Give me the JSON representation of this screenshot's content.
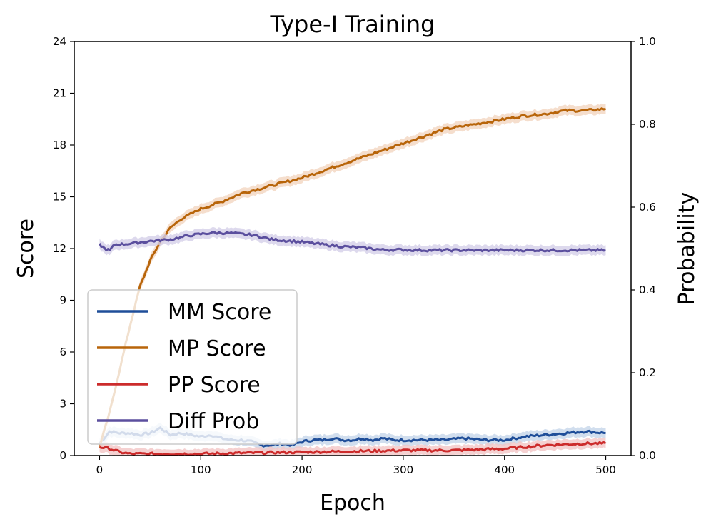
{
  "chart_data": {
    "type": "line",
    "title": "Type-I Training",
    "xlabel": "Epoch",
    "ylabel": "Score",
    "y2label": "Probability",
    "xlim": [
      -25,
      525
    ],
    "ylim": [
      0,
      24
    ],
    "y2lim": [
      0,
      1
    ],
    "xticks": [
      "0",
      "100",
      "200",
      "300",
      "400",
      "500"
    ],
    "yticks": [
      "0",
      "3",
      "6",
      "9",
      "12",
      "15",
      "18",
      "21",
      "24"
    ],
    "y2ticks": [
      "0.0",
      "0.2",
      "0.4",
      "0.6",
      "0.8",
      "1.0"
    ],
    "legend_position": "lower-left",
    "series": [
      {
        "name": "MM Score",
        "axis": "left",
        "color": "#1f4e99",
        "band_color": "#c6d6ea",
        "x": [
          0,
          10,
          20,
          30,
          40,
          50,
          60,
          70,
          80,
          90,
          100,
          110,
          120,
          130,
          140,
          150,
          160,
          170,
          180,
          190,
          200,
          210,
          220,
          230,
          240,
          250,
          260,
          270,
          280,
          290,
          300,
          320,
          340,
          360,
          380,
          400,
          420,
          440,
          460,
          480,
          500
        ],
        "y": [
          0.7,
          1.4,
          1.3,
          1.3,
          1.2,
          1.3,
          1.6,
          1.2,
          1.3,
          1.2,
          1.1,
          1.2,
          1.0,
          0.9,
          0.9,
          0.8,
          0.6,
          0.6,
          0.7,
          0.6,
          0.8,
          0.9,
          0.9,
          1.0,
          0.9,
          0.9,
          1.0,
          0.9,
          1.0,
          0.9,
          0.9,
          0.9,
          0.9,
          1.0,
          0.9,
          0.9,
          1.1,
          1.2,
          1.3,
          1.4,
          1.3
        ]
      },
      {
        "name": "MP Score",
        "axis": "left",
        "color": "#b8650a",
        "band_color": "#f2d6c0",
        "x": [
          0,
          10,
          20,
          30,
          40,
          50,
          60,
          70,
          80,
          90,
          100,
          120,
          140,
          160,
          180,
          200,
          220,
          240,
          260,
          280,
          300,
          320,
          340,
          360,
          380,
          400,
          420,
          440,
          460,
          480,
          500
        ],
        "y": [
          0.5,
          2.5,
          5.0,
          7.5,
          9.8,
          11.3,
          12.4,
          13.2,
          13.7,
          14.0,
          14.3,
          14.7,
          15.2,
          15.5,
          15.8,
          16.1,
          16.5,
          16.9,
          17.3,
          17.7,
          18.1,
          18.5,
          18.9,
          19.1,
          19.3,
          19.5,
          19.7,
          19.8,
          20.0,
          20.0,
          20.1
        ]
      },
      {
        "name": "PP Score",
        "axis": "left",
        "color": "#cc2b2b",
        "band_color": "#f2c6c6",
        "x": [
          0,
          10,
          20,
          30,
          50,
          100,
          150,
          200,
          250,
          300,
          350,
          400,
          420,
          440,
          460,
          480,
          500
        ],
        "y": [
          0.5,
          0.4,
          0.2,
          0.1,
          0.1,
          0.1,
          0.15,
          0.2,
          0.25,
          0.3,
          0.3,
          0.4,
          0.5,
          0.6,
          0.65,
          0.7,
          0.7
        ]
      },
      {
        "name": "Diff Prob",
        "axis": "right",
        "color": "#5b4f9e",
        "band_color": "#d4cfe8",
        "x": [
          0,
          5,
          10,
          15,
          20,
          30,
          40,
          50,
          60,
          70,
          80,
          90,
          100,
          110,
          120,
          130,
          140,
          150,
          160,
          170,
          180,
          200,
          220,
          240,
          260,
          280,
          300,
          320,
          340,
          360,
          380,
          400,
          420,
          440,
          460,
          480,
          500
        ],
        "y": [
          0.51,
          0.5,
          0.495,
          0.51,
          0.51,
          0.512,
          0.515,
          0.518,
          0.52,
          0.522,
          0.527,
          0.532,
          0.535,
          0.538,
          0.538,
          0.537,
          0.535,
          0.533,
          0.528,
          0.522,
          0.52,
          0.516,
          0.51,
          0.505,
          0.502,
          0.497,
          0.497,
          0.496,
          0.496,
          0.496,
          0.496,
          0.496,
          0.496,
          0.496,
          0.496,
          0.496,
          0.496
        ]
      }
    ]
  }
}
